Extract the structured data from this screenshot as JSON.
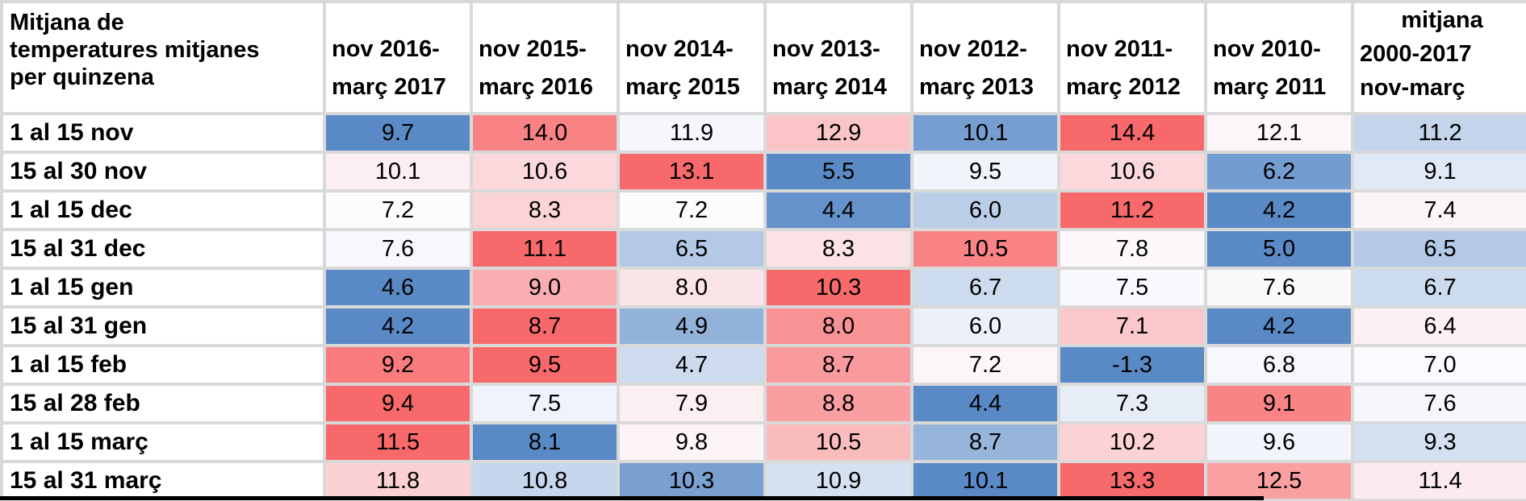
{
  "chart_data": {
    "type": "heatmap",
    "title": "Mitjana de temperatures mitjanes per quinzena",
    "columns": [
      "nov 2016-març 2017",
      "nov 2015-març 2016",
      "nov 2014-març 2015",
      "nov 2013-març 2014",
      "nov 2012-març 2013",
      "nov 2011-març 2012",
      "nov 2010-març 2011",
      "mitjana 2000-2017 nov-març"
    ],
    "rows": [
      "1 al 15 nov",
      "15 al 30 nov",
      "1 al 15 dec",
      "15 al 31 dec",
      "1 al 15 gen",
      "15 al 31 gen",
      "1 al 15 feb",
      "15 al 28 feb",
      "1 al 15 març",
      "15 al 31 març"
    ],
    "values": [
      [
        9.7,
        14.0,
        11.9,
        12.9,
        10.1,
        14.4,
        12.1,
        11.2
      ],
      [
        10.1,
        10.6,
        13.1,
        5.5,
        9.5,
        10.6,
        6.2,
        9.1
      ],
      [
        7.2,
        8.3,
        7.2,
        4.4,
        6.0,
        11.2,
        4.2,
        7.4
      ],
      [
        7.6,
        11.1,
        6.5,
        8.3,
        10.5,
        7.8,
        5.0,
        6.5
      ],
      [
        4.6,
        9.0,
        8.0,
        10.3,
        6.7,
        7.5,
        7.6,
        6.7
      ],
      [
        4.2,
        8.7,
        4.9,
        8.0,
        6.0,
        7.1,
        4.2,
        6.4
      ],
      [
        9.2,
        9.5,
        4.7,
        8.7,
        7.2,
        -1.3,
        6.8,
        7.0
      ],
      [
        9.4,
        7.5,
        7.9,
        8.8,
        4.4,
        7.3,
        9.1,
        7.6
      ],
      [
        11.5,
        8.1,
        9.8,
        10.5,
        8.7,
        10.2,
        9.6,
        9.3
      ],
      [
        11.8,
        10.8,
        10.3,
        10.9,
        10.1,
        13.3,
        12.5,
        11.4
      ]
    ],
    "value_format": "one_decimal",
    "color_scale": {
      "low": "#5A8AC6",
      "mid": "#FCFCFF",
      "high": "#F8696B",
      "midpoint": "per-row median",
      "scope": "per-row"
    },
    "gridline_color": "#d9d9d9",
    "legend": "none"
  },
  "header": {
    "corner_lines": [
      "Mitjana de",
      "temperatures mitjanes",
      "per quinzena"
    ],
    "column_lines": [
      [
        "nov 2016-",
        "març 2017"
      ],
      [
        "nov 2015-",
        "març 2016"
      ],
      [
        "nov 2014-",
        "març 2015"
      ],
      [
        "nov 2013-",
        "març 2014"
      ],
      [
        "nov 2012-",
        "març 2013"
      ],
      [
        "nov 2011-",
        "març 2012"
      ],
      [
        "nov 2010-",
        "març 2011"
      ],
      [
        "mitjana",
        "2000-2017",
        "nov-març"
      ]
    ]
  }
}
